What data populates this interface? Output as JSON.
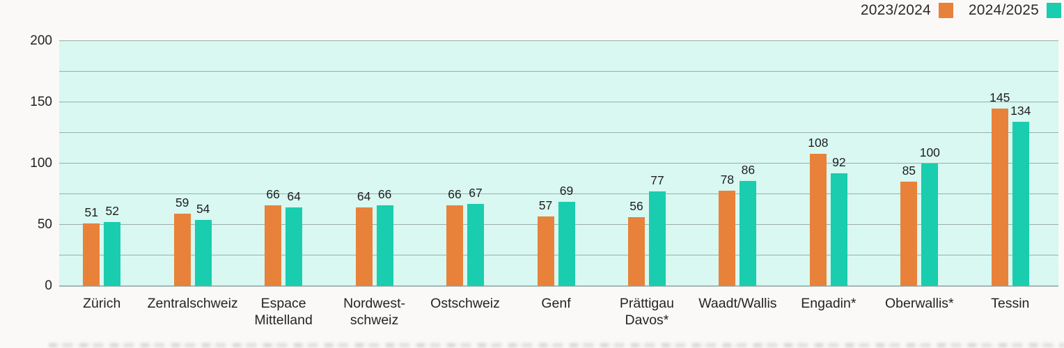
{
  "chart_data": {
    "type": "bar",
    "title": "",
    "xlabel": "",
    "ylabel": "",
    "categories": [
      "Zürich",
      "Zentralschweiz",
      "Espace\nMittelland",
      "Nordwest-\nschweiz",
      "Ostschweiz",
      "Genf",
      "Prättigau\nDavos*",
      "Waadt/Wallis",
      "Engadin*",
      "Oberwallis*",
      "Tessin"
    ],
    "series": [
      {
        "name": "2023/2024",
        "color": "#e8823a",
        "values": [
          51,
          59,
          66,
          64,
          66,
          57,
          56,
          78,
          108,
          85,
          145
        ]
      },
      {
        "name": "2024/2025",
        "color": "#19cdae",
        "values": [
          52,
          54,
          64,
          66,
          67,
          69,
          77,
          86,
          92,
          100,
          134
        ]
      }
    ],
    "ylim": [
      0,
      200
    ],
    "y_major_ticks": [
      0,
      50,
      100,
      150,
      200
    ],
    "y_minor_step": 25,
    "grid": true,
    "legend_position": "top-right",
    "value_labels": true,
    "plot_background": "#d8f8f1",
    "gridline_color": "#9cadac",
    "text_color": "#242424",
    "page_background": "#faf9f8"
  }
}
